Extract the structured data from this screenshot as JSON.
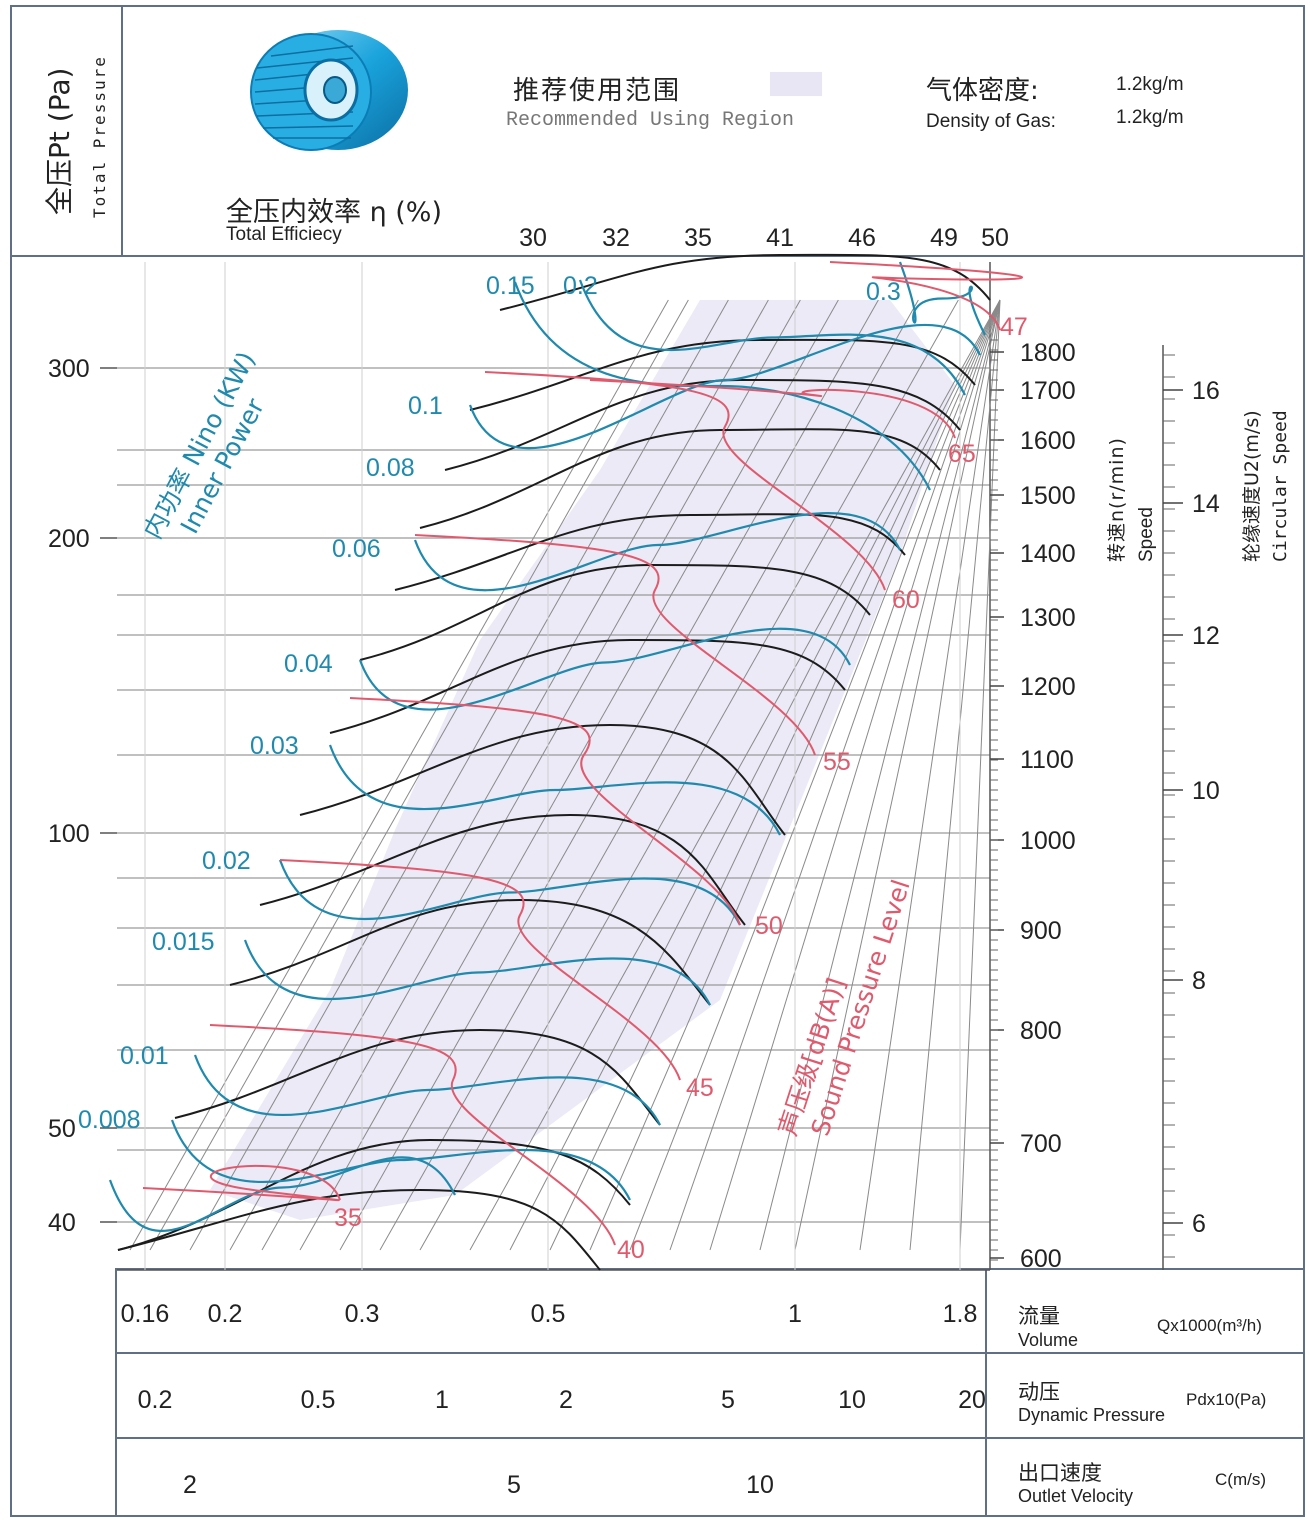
{
  "header": {
    "pt_cn": "全压Pt (Pa)",
    "pt_en": "Total Pressure",
    "eff_cn": "全压内效率 η (%)",
    "eff_en": "Total Efficiecy",
    "region_cn": "推荐使用范围",
    "region_en": "Recommended Using Region",
    "region_color": "#e8e6f4",
    "density_cn": "气体密度:",
    "density_en": "Density of Gas:",
    "density_val_1": "1.2kg/m",
    "density_val_2": "1.2kg/m"
  },
  "side": {
    "speed_cn": "转速n(r/min)",
    "speed_en": "Speed",
    "circ_cn": "轮缘速度U2(m/s)",
    "circ_en": "Circular Speed",
    "power_cn": "内功率 Nino (KW)",
    "power_en": "Inner Power",
    "spl_cn": "声压级[dB(A)]",
    "spl_en": "Sound Pressure Level"
  },
  "bottom": {
    "volume_cn": "流量",
    "volume_en": "Volume",
    "volume_unit": "Qx1000(m³/h)",
    "dyn_cn": "动压",
    "dyn_en": "Dynamic Pressure",
    "dyn_unit": "Pdx10(Pa)",
    "vel_cn": "出口速度",
    "vel_en": "Outlet Velocity",
    "vel_unit": "C(m/s)"
  },
  "colors": {
    "power": "#1f8aad",
    "sound": "#e05a6e",
    "pressure": "#1c1c1c",
    "frame": "#5f6f86",
    "grid": "#9a9a9a"
  },
  "chart_data": {
    "type": "line",
    "title": "",
    "y_axis": {
      "label": "全压Pt (Pa)",
      "scale": "log",
      "ticks": [
        "300",
        "200",
        "100",
        "50",
        "40"
      ]
    },
    "x_axis_volume": {
      "label": "流量 Qx1000(m³/h)",
      "scale": "log",
      "ticks": [
        "0.16",
        "0.2",
        "0.3",
        "0.5",
        "1",
        "1.8"
      ]
    },
    "x_axis_dynamic_pressure": {
      "label": "动压 Pdx10(Pa)",
      "ticks": [
        "0.2",
        "0.5",
        "1",
        "2",
        "5",
        "10",
        "20"
      ]
    },
    "x_axis_outlet_velocity": {
      "label": "出口速度 C(m/s)",
      "ticks": [
        "2",
        "5",
        "10"
      ]
    },
    "efficiency_ticks": [
      "30",
      "32",
      "35",
      "41",
      "46",
      "49",
      "50"
    ],
    "speed_ticks": [
      "1800",
      "1700",
      "1600",
      "1500",
      "1400",
      "1300",
      "1200",
      "1100",
      "1000",
      "900",
      "800",
      "700",
      "600"
    ],
    "circular_speed_ticks": [
      "16",
      "14",
      "12",
      "10",
      "8",
      "6"
    ],
    "power_labels": [
      "0.15",
      "0.2",
      "0.3",
      "0.1",
      "0.08",
      "0.06",
      "0.04",
      "0.03",
      "0.02",
      "0.015",
      "0.01",
      "0.008"
    ],
    "sound_labels": [
      "47",
      "65",
      "60",
      "55",
      "50",
      "45",
      "40",
      "35"
    ],
    "pressure_curves_rpm": [
      1800,
      1700,
      1600,
      1500,
      1400,
      1300,
      1200,
      1100,
      1000,
      900,
      800,
      700,
      600
    ]
  }
}
